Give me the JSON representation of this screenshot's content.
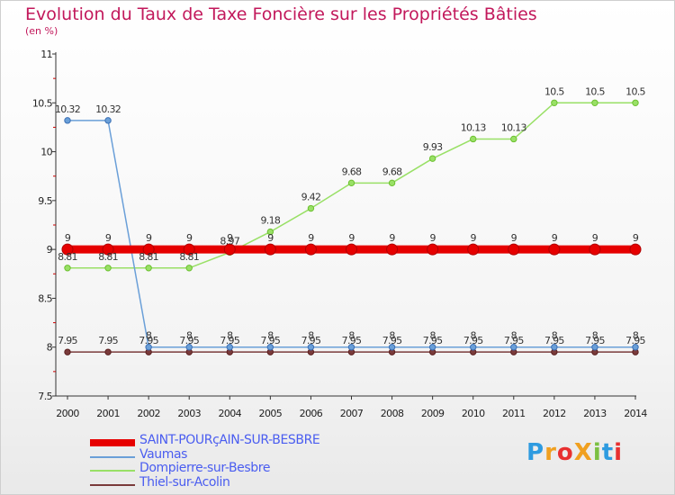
{
  "chart_data": {
    "type": "line",
    "title": "Evolution du Taux de Taxe Foncière sur les Propriétés Bâties",
    "ylabel": "(en %)",
    "ylim": [
      7.5,
      11
    ],
    "yticks": [
      7.5,
      8,
      8.5,
      9,
      9.5,
      10,
      10.5,
      11
    ],
    "ytick_labels": [
      "7.5",
      "8",
      "8.5",
      "9",
      "9.5",
      "10",
      "10.5",
      "11"
    ],
    "categories": [
      "2000",
      "2001",
      "2002",
      "2003",
      "2004",
      "2005",
      "2006",
      "2007",
      "2008",
      "2009",
      "2010",
      "2011",
      "2012",
      "2013",
      "2014"
    ],
    "series": [
      {
        "name": "SAINT-POURçAIN-SUR-BESBRE",
        "color": "#e60000",
        "marker": "#b00000",
        "lineWidth": 9,
        "values": [
          9,
          9,
          9,
          9,
          9,
          9,
          9,
          9,
          9,
          9,
          9,
          9,
          9,
          9,
          9
        ],
        "labels": [
          "9",
          "9",
          "9",
          "9",
          "9",
          "9",
          "9",
          "9",
          "9",
          "9",
          "9",
          "9",
          "9",
          "9",
          "9"
        ]
      },
      {
        "name": "Vaumas",
        "color": "#6a9fd8",
        "marker": "#3a6fb5",
        "lineWidth": 1.5,
        "values": [
          10.32,
          10.32,
          8,
          8,
          8,
          8,
          8,
          8,
          8,
          8,
          8,
          8,
          8,
          8,
          8
        ],
        "labels": [
          "10.32",
          "10.32",
          "8",
          "8",
          "8",
          "8",
          "8",
          "8",
          "8",
          "8",
          "8",
          "8",
          "8",
          "8",
          "8"
        ]
      },
      {
        "name": "Dompierre-sur-Besbre",
        "color": "#99e066",
        "marker": "#6cc030",
        "lineWidth": 1.5,
        "values": [
          8.81,
          8.81,
          8.81,
          8.81,
          8.97,
          9.18,
          9.42,
          9.68,
          9.68,
          9.93,
          10.13,
          10.13,
          10.5,
          10.5,
          10.5
        ],
        "labels": [
          "8.81",
          "8.81",
          "8.81",
          "8.81",
          "8.97",
          "9.18",
          "9.42",
          "9.68",
          "9.68",
          "9.93",
          "10.13",
          "10.13",
          "10.5",
          "10.5",
          "10.5"
        ]
      },
      {
        "name": "Thiel-sur-Acolin",
        "color": "#7a3b3b",
        "marker": "#5a1f1f",
        "lineWidth": 1.5,
        "values": [
          7.95,
          7.95,
          7.95,
          7.95,
          7.95,
          7.95,
          7.95,
          7.95,
          7.95,
          7.95,
          7.95,
          7.95,
          7.95,
          7.95,
          7.95
        ],
        "labels": [
          "7.95",
          "7.95",
          "7.95",
          "7.95",
          "7.95",
          "7.95",
          "7.95",
          "7.95",
          "7.95",
          "7.95",
          "7.95",
          "7.95",
          "7.95",
          "7.95",
          "7.95"
        ]
      }
    ]
  },
  "logo": {
    "text": "ProXiti",
    "letters": [
      "P",
      "r",
      "o",
      "X",
      "i",
      "t",
      "i"
    ],
    "colors": [
      "#2e9be0",
      "#f0a020",
      "#e83030",
      "#f0a020",
      "#7cc042",
      "#2e9be0",
      "#e83030"
    ]
  }
}
